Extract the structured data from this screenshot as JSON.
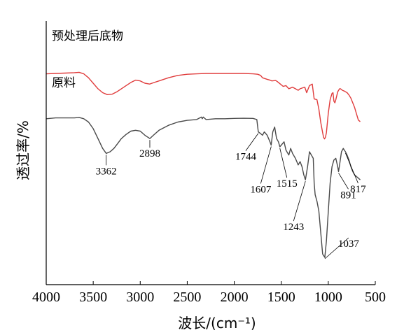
{
  "chart_data": {
    "type": "line",
    "xlabel": "波长/(cm⁻¹)",
    "ylabel": "透过率/%",
    "xlim": [
      4000,
      500
    ],
    "x_reversed": true,
    "xticks": [
      4000,
      3500,
      3000,
      2500,
      2000,
      1500,
      1000,
      500
    ],
    "yticks_shown": false,
    "grid": false,
    "series": [
      {
        "name": "预处理后底物",
        "color": "#e03c3c",
        "x": [
          4000,
          3900,
          3800,
          3700,
          3650,
          3600,
          3550,
          3500,
          3450,
          3400,
          3350,
          3300,
          3250,
          3200,
          3150,
          3100,
          3050,
          3000,
          2950,
          2900,
          2850,
          2800,
          2700,
          2600,
          2500,
          2400,
          2300,
          2200,
          2100,
          2000,
          1900,
          1800,
          1750,
          1720,
          1700,
          1650,
          1620,
          1600,
          1560,
          1540,
          1510,
          1480,
          1450,
          1420,
          1400,
          1380,
          1350,
          1320,
          1300,
          1250,
          1230,
          1200,
          1170,
          1160,
          1150,
          1120,
          1100,
          1080,
          1060,
          1050,
          1040,
          1030,
          1020,
          1000,
          980,
          960,
          950,
          940,
          930,
          920,
          900,
          890,
          880,
          870,
          860,
          850,
          830,
          800,
          780,
          760,
          740,
          720,
          700,
          680,
          660
        ],
        "y": [
          0.95,
          0.955,
          0.96,
          0.965,
          0.97,
          0.95,
          0.9,
          0.83,
          0.76,
          0.71,
          0.685,
          0.69,
          0.72,
          0.76,
          0.8,
          0.84,
          0.87,
          0.86,
          0.83,
          0.82,
          0.84,
          0.86,
          0.9,
          0.93,
          0.945,
          0.95,
          0.955,
          0.955,
          0.955,
          0.955,
          0.955,
          0.95,
          0.945,
          0.93,
          0.9,
          0.88,
          0.87,
          0.86,
          0.865,
          0.85,
          0.82,
          0.79,
          0.8,
          0.76,
          0.77,
          0.78,
          0.76,
          0.74,
          0.76,
          0.78,
          0.71,
          0.8,
          0.82,
          0.72,
          0.63,
          0.62,
          0.5,
          0.33,
          0.2,
          0.14,
          0.12,
          0.14,
          0.2,
          0.45,
          0.62,
          0.7,
          0.71,
          0.6,
          0.58,
          0.62,
          0.72,
          0.74,
          0.76,
          0.76,
          0.75,
          0.74,
          0.73,
          0.71,
          0.68,
          0.64,
          0.58,
          0.52,
          0.44,
          0.36,
          0.34
        ],
        "labels": []
      },
      {
        "name": "原料",
        "color": "#4a4a4a",
        "x": [
          4000,
          3900,
          3800,
          3700,
          3650,
          3600,
          3550,
          3500,
          3450,
          3400,
          3362,
          3320,
          3280,
          3240,
          3200,
          3150,
          3100,
          3050,
          3000,
          2950,
          2898,
          2860,
          2800,
          2700,
          2600,
          2500,
          2400,
          2350,
          2340,
          2330,
          2300,
          2200,
          2100,
          2000,
          1900,
          1800,
          1760,
          1744,
          1720,
          1700,
          1680,
          1650,
          1620,
          1607,
          1590,
          1570,
          1550,
          1530,
          1515,
          1500,
          1470,
          1450,
          1420,
          1400,
          1380,
          1350,
          1320,
          1300,
          1280,
          1260,
          1243,
          1220,
          1200,
          1180,
          1160,
          1150,
          1140,
          1120,
          1100,
          1080,
          1060,
          1037,
          1020,
          1000,
          980,
          960,
          940,
          920,
          900,
          891,
          880,
          860,
          840,
          830,
          817,
          800,
          780,
          760,
          740,
          720,
          700,
          680,
          660
        ],
        "y": [
          0.84,
          0.845,
          0.845,
          0.845,
          0.848,
          0.84,
          0.82,
          0.78,
          0.72,
          0.66,
          0.63,
          0.64,
          0.66,
          0.69,
          0.72,
          0.745,
          0.765,
          0.77,
          0.765,
          0.74,
          0.72,
          0.74,
          0.77,
          0.8,
          0.82,
          0.83,
          0.835,
          0.85,
          0.84,
          0.85,
          0.835,
          0.84,
          0.84,
          0.842,
          0.843,
          0.842,
          0.835,
          0.76,
          0.75,
          0.74,
          0.76,
          0.74,
          0.7,
          0.68,
          0.76,
          0.79,
          0.72,
          0.7,
          0.67,
          0.68,
          0.7,
          0.65,
          0.62,
          0.66,
          0.63,
          0.6,
          0.56,
          0.58,
          0.55,
          0.5,
          0.47,
          0.55,
          0.64,
          0.62,
          0.6,
          0.45,
          0.38,
          0.34,
          0.28,
          0.15,
          0.02,
          0.0,
          0.1,
          0.28,
          0.45,
          0.55,
          0.59,
          0.6,
          0.55,
          0.52,
          0.56,
          0.64,
          0.66,
          0.65,
          0.64,
          0.62,
          0.59,
          0.55,
          0.52,
          0.5,
          0.49,
          0.48,
          0.47
        ],
        "labels": [
          {
            "x": 3362,
            "text": "3362"
          },
          {
            "x": 2898,
            "text": "2898"
          },
          {
            "x": 1744,
            "text": "1744"
          },
          {
            "x": 1607,
            "text": "1607"
          },
          {
            "x": 1515,
            "text": "1515"
          },
          {
            "x": 1243,
            "text": "1243"
          },
          {
            "x": 1037,
            "text": "1037"
          },
          {
            "x": 891,
            "text": "891"
          },
          {
            "x": 817,
            "text": "817"
          }
        ]
      }
    ]
  }
}
